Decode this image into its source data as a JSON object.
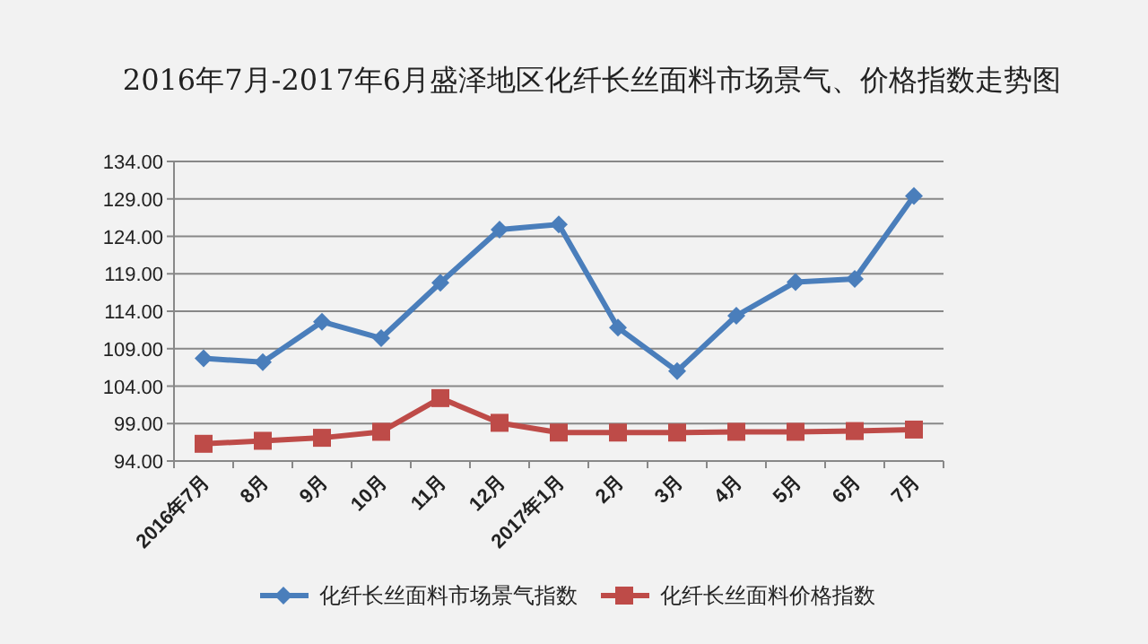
{
  "chart_data": {
    "type": "line",
    "title": "2016年7月-2017年6月盛泽地区化纤长丝面料市场景气、价格指数走势图",
    "categories": [
      "2016年7月",
      "8月",
      "9月",
      "10月",
      "11月",
      "12月",
      "2017年1月",
      "2月",
      "3月",
      "4月",
      "5月",
      "6月",
      "7月"
    ],
    "series": [
      {
        "name": "化纤长丝面料市场景气指数",
        "color": "#4a7ebb",
        "marker": "diamond",
        "values": [
          107.7,
          107.2,
          112.6,
          110.4,
          117.8,
          124.9,
          125.6,
          111.8,
          106.0,
          113.4,
          117.9,
          118.3,
          129.4
        ]
      },
      {
        "name": "化纤长丝面料价格指数",
        "color": "#be4b48",
        "marker": "square",
        "values": [
          96.3,
          96.7,
          97.1,
          97.9,
          102.4,
          99.1,
          97.8,
          97.8,
          97.8,
          97.9,
          97.9,
          98.0,
          98.2
        ]
      }
    ],
    "ylim": [
      94,
      134
    ],
    "yticks": [
      {
        "value": 94,
        "label": "94.00"
      },
      {
        "value": 99,
        "label": "99.00"
      },
      {
        "value": 104,
        "label": "104.00"
      },
      {
        "value": 109,
        "label": "109.00"
      },
      {
        "value": 114,
        "label": "114.00"
      },
      {
        "value": 119,
        "label": "119.00"
      },
      {
        "value": 124,
        "label": "124.00"
      },
      {
        "value": 129,
        "label": "129.00"
      },
      {
        "value": 134,
        "label": "134.00"
      }
    ],
    "grid": "y",
    "legend": "bottom"
  }
}
